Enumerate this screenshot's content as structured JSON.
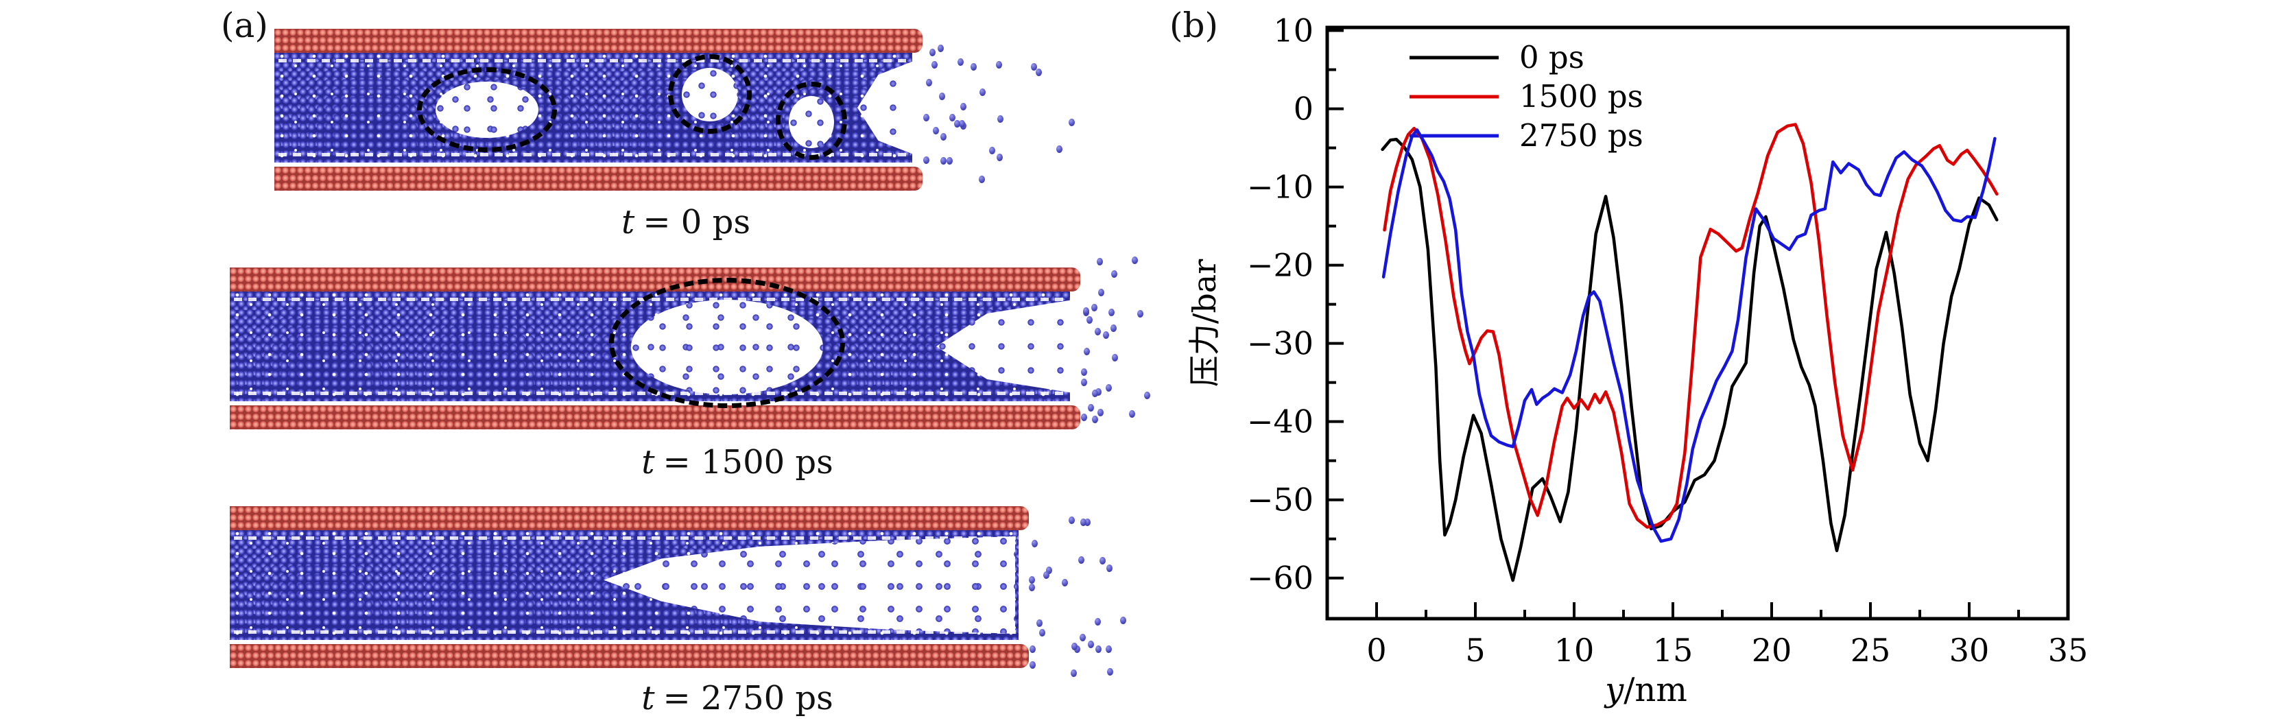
{
  "figure": {
    "panel_a": {
      "label": "(a)",
      "colors": {
        "wall": "#d05a52",
        "fluid": "#4444c4",
        "annotation": "#000000"
      },
      "snapshots": [
        {
          "var": "t",
          "rest": "= 0 ps"
        },
        {
          "var": "t",
          "rest": "= 1500 ps"
        },
        {
          "var": "t",
          "rest": "= 2750 ps"
        }
      ]
    },
    "panel_b": {
      "label": "(b)",
      "ylabel": "压力/bar",
      "xlabel_var": "y",
      "xlabel_rest": "/nm",
      "legend": [
        "0 ps",
        "1500 ps",
        "2750 ps"
      ]
    }
  },
  "chart_data": {
    "type": "line",
    "title": "",
    "xlabel": "y/nm",
    "ylabel": "压力/bar",
    "xlim": [
      -2.5,
      35
    ],
    "ylim": [
      -65.2,
      10.4
    ],
    "x_major_ticks": [
      0,
      5,
      10,
      15,
      20,
      25,
      30,
      35
    ],
    "x_minor_ticks": [
      2.5,
      7.5,
      12.5,
      17.5,
      22.5,
      27.5,
      32.5
    ],
    "y_major_ticks": [
      -60,
      -50,
      -40,
      -30,
      -20,
      -10,
      0,
      10
    ],
    "y_minor_ticks": [
      -55,
      -45,
      -35,
      -25,
      -15,
      -5,
      5
    ],
    "grid": false,
    "legend_position": "upper-left-inside",
    "series": [
      {
        "name": "0 ps",
        "color": "#000000",
        "points": [
          [
            0.3,
            -5.2
          ],
          [
            0.7,
            -4.0
          ],
          [
            1.0,
            -3.9
          ],
          [
            1.4,
            -4.9
          ],
          [
            1.8,
            -6.5
          ],
          [
            2.2,
            -10
          ],
          [
            2.6,
            -18
          ],
          [
            3.0,
            -33
          ],
          [
            3.2,
            -45
          ],
          [
            3.45,
            -54.5
          ],
          [
            3.7,
            -53
          ],
          [
            4.0,
            -50
          ],
          [
            4.4,
            -44.5
          ],
          [
            4.9,
            -39.2
          ],
          [
            5.3,
            -41.5
          ],
          [
            5.8,
            -48
          ],
          [
            6.3,
            -55
          ],
          [
            6.9,
            -60.3
          ],
          [
            7.3,
            -56
          ],
          [
            7.9,
            -48.5
          ],
          [
            8.4,
            -47.3
          ],
          [
            8.8,
            -49.5
          ],
          [
            9.3,
            -52.8
          ],
          [
            9.7,
            -49
          ],
          [
            10.1,
            -41
          ],
          [
            10.6,
            -28
          ],
          [
            11.1,
            -16
          ],
          [
            11.6,
            -11.2
          ],
          [
            12.0,
            -16.5
          ],
          [
            12.4,
            -25
          ],
          [
            12.9,
            -38
          ],
          [
            13.4,
            -49
          ],
          [
            13.9,
            -53.7
          ],
          [
            14.4,
            -53.3
          ],
          [
            15.0,
            -51.5
          ],
          [
            15.6,
            -50.3
          ],
          [
            16.1,
            -47.5
          ],
          [
            16.6,
            -46.8
          ],
          [
            17.1,
            -45
          ],
          [
            17.6,
            -40.5
          ],
          [
            18.0,
            -35.5
          ],
          [
            18.4,
            -33.8
          ],
          [
            18.7,
            -32.5
          ],
          [
            19.1,
            -21
          ],
          [
            19.4,
            -15
          ],
          [
            19.7,
            -13.8
          ],
          [
            20.1,
            -17.5
          ],
          [
            20.6,
            -23
          ],
          [
            21.1,
            -29.5
          ],
          [
            21.5,
            -33
          ],
          [
            21.9,
            -35.3
          ],
          [
            22.2,
            -38
          ],
          [
            22.6,
            -45
          ],
          [
            23.0,
            -53
          ],
          [
            23.3,
            -56.5
          ],
          [
            23.7,
            -52
          ],
          [
            24.1,
            -44
          ],
          [
            24.5,
            -36.5
          ],
          [
            24.9,
            -28.5
          ],
          [
            25.3,
            -20.5
          ],
          [
            25.8,
            -15.8
          ],
          [
            26.2,
            -21
          ],
          [
            26.6,
            -28
          ],
          [
            27.0,
            -36.5
          ],
          [
            27.5,
            -42.8
          ],
          [
            27.9,
            -45
          ],
          [
            28.3,
            -38.5
          ],
          [
            28.7,
            -30
          ],
          [
            29.1,
            -24
          ],
          [
            29.5,
            -20.5
          ],
          [
            30.0,
            -14.8
          ],
          [
            30.5,
            -11.4
          ],
          [
            31.0,
            -12.3
          ],
          [
            31.4,
            -14.2
          ]
        ]
      },
      {
        "name": "1500 ps",
        "color": "#dd0000",
        "points": [
          [
            0.4,
            -15.5
          ],
          [
            0.7,
            -10.5
          ],
          [
            1.0,
            -7.5
          ],
          [
            1.3,
            -5
          ],
          [
            1.6,
            -3.3
          ],
          [
            1.9,
            -2.5
          ],
          [
            2.3,
            -3.8
          ],
          [
            2.7,
            -6.5
          ],
          [
            3.1,
            -11
          ],
          [
            3.5,
            -17
          ],
          [
            3.9,
            -24
          ],
          [
            4.2,
            -28
          ],
          [
            4.5,
            -31
          ],
          [
            4.7,
            -32.6
          ],
          [
            5.0,
            -31
          ],
          [
            5.3,
            -29.3
          ],
          [
            5.6,
            -28.4
          ],
          [
            5.9,
            -28.5
          ],
          [
            6.2,
            -31.5
          ],
          [
            6.6,
            -38
          ],
          [
            7.0,
            -43
          ],
          [
            7.4,
            -46.5
          ],
          [
            7.8,
            -50
          ],
          [
            8.15,
            -52
          ],
          [
            8.6,
            -48
          ],
          [
            9.0,
            -42.5
          ],
          [
            9.4,
            -38
          ],
          [
            9.65,
            -37
          ],
          [
            10.0,
            -38.3
          ],
          [
            10.35,
            -37.2
          ],
          [
            10.7,
            -38.4
          ],
          [
            11.05,
            -36.5
          ],
          [
            11.3,
            -37.6
          ],
          [
            11.6,
            -36.2
          ],
          [
            12.0,
            -38.8
          ],
          [
            12.4,
            -44
          ],
          [
            12.8,
            -50.5
          ],
          [
            13.2,
            -52.5
          ],
          [
            13.7,
            -53.5
          ],
          [
            14.2,
            -53.2
          ],
          [
            14.8,
            -52.4
          ],
          [
            15.2,
            -50.5
          ],
          [
            15.6,
            -44
          ],
          [
            16.0,
            -32
          ],
          [
            16.4,
            -19
          ],
          [
            16.9,
            -15.4
          ],
          [
            17.3,
            -16
          ],
          [
            17.8,
            -17.2
          ],
          [
            18.2,
            -18.2
          ],
          [
            18.5,
            -17.8
          ],
          [
            18.9,
            -14
          ],
          [
            19.3,
            -10.8
          ],
          [
            19.8,
            -6
          ],
          [
            20.3,
            -3
          ],
          [
            20.8,
            -2.2
          ],
          [
            21.2,
            -2
          ],
          [
            21.6,
            -4.5
          ],
          [
            22.0,
            -9.5
          ],
          [
            22.4,
            -17
          ],
          [
            22.8,
            -26.5
          ],
          [
            23.2,
            -35
          ],
          [
            23.6,
            -41.8
          ],
          [
            24.1,
            -46.2
          ],
          [
            24.6,
            -41
          ],
          [
            25.0,
            -33.5
          ],
          [
            25.4,
            -26
          ],
          [
            25.9,
            -20
          ],
          [
            26.4,
            -13.5
          ],
          [
            26.9,
            -9
          ],
          [
            27.3,
            -7.2
          ],
          [
            27.8,
            -6.1
          ],
          [
            28.2,
            -5.1
          ],
          [
            28.5,
            -4.7
          ],
          [
            28.9,
            -6.6
          ],
          [
            29.2,
            -7.1
          ],
          [
            29.6,
            -5.8
          ],
          [
            29.9,
            -5.3
          ],
          [
            30.3,
            -6.6
          ],
          [
            30.7,
            -8
          ],
          [
            31.1,
            -9.6
          ],
          [
            31.4,
            -10.9
          ]
        ]
      },
      {
        "name": "2750 ps",
        "color": "#1515dd",
        "points": [
          [
            0.35,
            -21.5
          ],
          [
            0.7,
            -16
          ],
          [
            1.1,
            -10.5
          ],
          [
            1.5,
            -6
          ],
          [
            1.8,
            -3.5
          ],
          [
            2.05,
            -2.7
          ],
          [
            2.4,
            -4.2
          ],
          [
            2.8,
            -6
          ],
          [
            3.1,
            -8
          ],
          [
            3.4,
            -9.3
          ],
          [
            3.7,
            -11.5
          ],
          [
            4.0,
            -15.5
          ],
          [
            4.3,
            -23.5
          ],
          [
            4.6,
            -28.5
          ],
          [
            4.9,
            -31.5
          ],
          [
            5.2,
            -36.5
          ],
          [
            5.5,
            -39.5
          ],
          [
            5.8,
            -41.8
          ],
          [
            6.2,
            -42.6
          ],
          [
            6.6,
            -43
          ],
          [
            6.9,
            -43.2
          ],
          [
            7.2,
            -40.5
          ],
          [
            7.5,
            -37.3
          ],
          [
            7.85,
            -35.9
          ],
          [
            8.1,
            -37.8
          ],
          [
            8.4,
            -37
          ],
          [
            8.7,
            -36.5
          ],
          [
            9.0,
            -35.8
          ],
          [
            9.4,
            -36.3
          ],
          [
            9.8,
            -34
          ],
          [
            10.1,
            -31
          ],
          [
            10.45,
            -26.5
          ],
          [
            10.75,
            -24
          ],
          [
            11.0,
            -23.4
          ],
          [
            11.3,
            -24.6
          ],
          [
            11.6,
            -28
          ],
          [
            12.0,
            -32.5
          ],
          [
            12.4,
            -36.5
          ],
          [
            12.8,
            -42.5
          ],
          [
            13.2,
            -47.5
          ],
          [
            13.6,
            -50.5
          ],
          [
            14.0,
            -53.5
          ],
          [
            14.4,
            -55.3
          ],
          [
            14.9,
            -55
          ],
          [
            15.3,
            -52.5
          ],
          [
            15.7,
            -48
          ],
          [
            16.0,
            -43.5
          ],
          [
            16.4,
            -39.8
          ],
          [
            16.8,
            -37.4
          ],
          [
            17.2,
            -34.8
          ],
          [
            17.6,
            -33
          ],
          [
            18.0,
            -31
          ],
          [
            18.3,
            -27
          ],
          [
            18.7,
            -19
          ],
          [
            19.2,
            -12.8
          ],
          [
            19.6,
            -14.2
          ],
          [
            20.1,
            -16.6
          ],
          [
            20.5,
            -17.3
          ],
          [
            20.9,
            -18
          ],
          [
            21.3,
            -16.4
          ],
          [
            21.7,
            -16
          ],
          [
            22.0,
            -13.6
          ],
          [
            22.4,
            -13
          ],
          [
            22.7,
            -12.8
          ],
          [
            23.1,
            -6.8
          ],
          [
            23.5,
            -8.2
          ],
          [
            23.9,
            -7
          ],
          [
            24.4,
            -7.8
          ],
          [
            24.8,
            -9.7
          ],
          [
            25.2,
            -10.9
          ],
          [
            25.5,
            -11.1
          ],
          [
            25.9,
            -8.5
          ],
          [
            26.3,
            -6.3
          ],
          [
            26.7,
            -5.5
          ],
          [
            27.1,
            -6.5
          ],
          [
            27.6,
            -7.3
          ],
          [
            28.0,
            -8.8
          ],
          [
            28.4,
            -10.7
          ],
          [
            28.8,
            -13
          ],
          [
            29.2,
            -14.2
          ],
          [
            29.6,
            -14.4
          ],
          [
            29.9,
            -13.8
          ],
          [
            30.3,
            -13.9
          ],
          [
            30.7,
            -10.5
          ],
          [
            31.0,
            -7.5
          ],
          [
            31.3,
            -3.8
          ]
        ]
      }
    ]
  }
}
